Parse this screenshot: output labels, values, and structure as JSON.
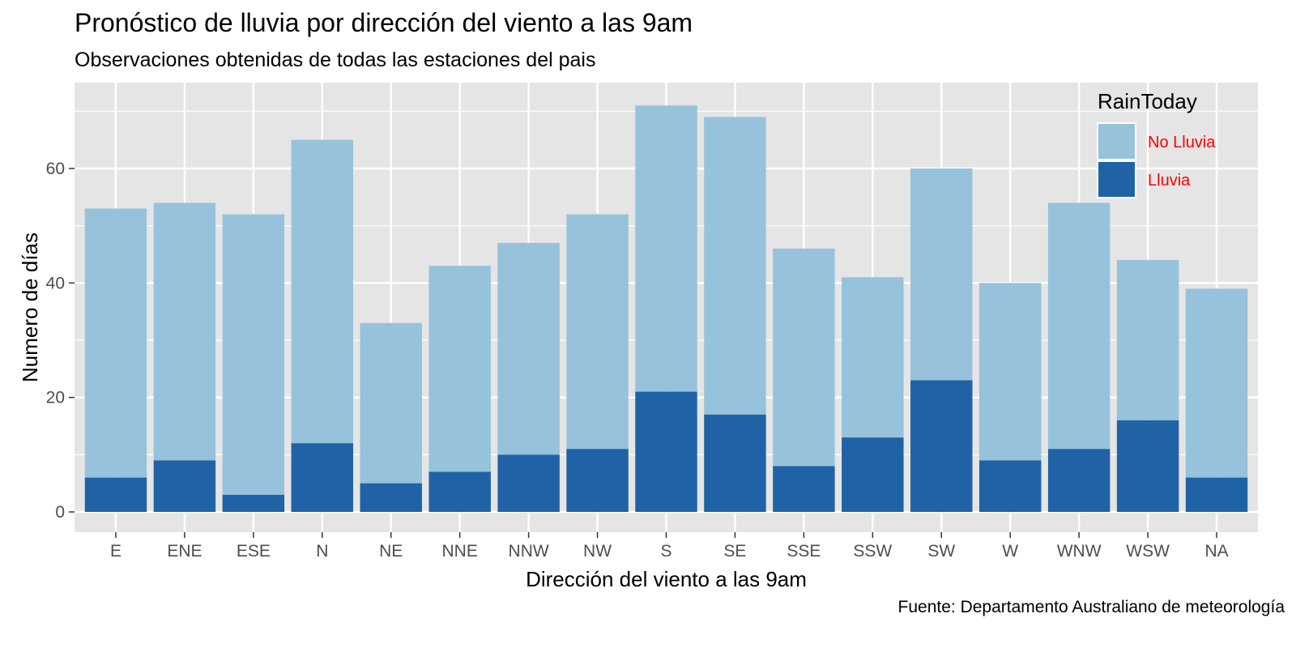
{
  "chart_data": {
    "type": "bar",
    "stacked": true,
    "title": "Pronóstico de lluvia por dirección del viento a las 9am",
    "subtitle": "Observaciones obtenidas de todas las estaciones del pais",
    "caption": "Fuente: Departamento Australiano de meteorología",
    "xlabel": "Dirección del viento a las 9am",
    "ylabel": "Numero de días",
    "categories": [
      "E",
      "ENE",
      "ESE",
      "N",
      "NE",
      "NNE",
      "NNW",
      "NW",
      "S",
      "SE",
      "SSE",
      "SSW",
      "SW",
      "W",
      "WNW",
      "WSW",
      "NA"
    ],
    "series": [
      {
        "name": "Lluvia",
        "color": "#1f63a6",
        "values": [
          6,
          9,
          3,
          12,
          5,
          7,
          10,
          11,
          21,
          17,
          8,
          13,
          23,
          9,
          11,
          16,
          6
        ]
      },
      {
        "name": "No Lluvia",
        "color": "#96c2dc",
        "values": [
          47,
          45,
          49,
          53,
          28,
          36,
          37,
          41,
          50,
          52,
          38,
          28,
          37,
          31,
          43,
          28,
          33
        ]
      }
    ],
    "ylim": [
      0,
      73
    ],
    "yticks": [
      0,
      20,
      40,
      60
    ],
    "grid": true,
    "legend": {
      "title": "RainToday",
      "position": "top-right",
      "label_color": "#ff0000",
      "entries": [
        {
          "label": "No Lluvia",
          "color": "#96c2dc"
        },
        {
          "label": "Lluvia",
          "color": "#1f63a6"
        }
      ]
    },
    "panel_background": "#e5e5e5",
    "grid_color": "#ffffff"
  }
}
